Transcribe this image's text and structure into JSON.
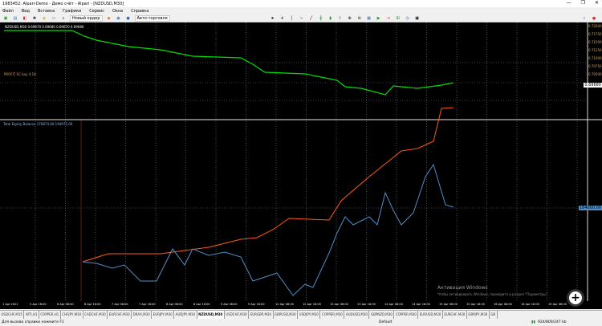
{
  "window": {
    "title": "1983452: Alpari-Demo - Демо счёт - Alpari - [NZDUSD,M30]",
    "minimize": "—",
    "restore": "❐",
    "close": "✕"
  },
  "menu": [
    "Файл",
    "Вид",
    "Вставка",
    "Графики",
    "Сервис",
    "Окна",
    "Справка"
  ],
  "toolbar": {
    "new_order": "Новый ордер",
    "autotrading": "Авто-торговля"
  },
  "chart": {
    "symbol_label": "NZDUSD,M30  0.69670 0.69680 0.69670 0.69680",
    "indicator_label": "PROFIT SC buy 4.18",
    "equity_label": "Total Equity Balance 176874.00 194972.00",
    "price_axis_top": [
      "0.72000",
      "0.71750",
      "0.71500",
      "0.71250",
      "0.71000",
      "0.70750",
      "0.70500"
    ],
    "current_price": "0.69680",
    "equity_marker": "184000.00",
    "time_labels": [
      "1 Apr 2021",
      "5 Apr 16:00",
      "6 Apr 08:00",
      "6 Apr 16:00",
      "7 Apr 08:00",
      "7 Apr 16:00",
      "8 Apr 08:00",
      "8 Apr 16:00",
      "9 Apr 08:00",
      "9 Apr 16:00",
      "12 Apr 08:00",
      "12 Apr 16:00",
      "13 Apr 08:00",
      "13 Apr 16:00",
      "14 Apr 08:00",
      "14 Apr 16:00",
      "15 Apr 08:00",
      "15 Apr 16:00",
      "16 Apr 08:00",
      "16 Apr 16:00",
      "19 Apr 08:00"
    ],
    "colors": {
      "price": "#00e000",
      "equity": "#ff5a14",
      "balance": "#4f8fc8",
      "grid": "#6f7a89"
    }
  },
  "tabs": [
    "USDCHF,M15",
    "WTI,H1",
    "COPPER,H1",
    "CHFJPY,M30",
    "CADCHF,M30",
    "EURCHF,M30",
    "DRAX,M30",
    "EURJPY,M30",
    "AUDJPY,M30",
    "NZDUSD,M30",
    "USDCHF,M30",
    "EURGBP,M30",
    "GBPUSD,M30",
    "USDJPY,M30",
    "COPPER,M30",
    "AUDUSD,M30",
    "GBPNZD,M30",
    "COPPER,M30",
    "EURUSD,M30",
    "EURCHF,M30",
    "GBPJPY,M30",
    "GB"
  ],
  "active_tab": "NZDUSD,M30",
  "status": {
    "help": "Для вызова справки нажмите F1",
    "profile": "Default",
    "traffic": "924/800/247 kb"
  },
  "watermark": {
    "title": "Активация Windows",
    "text": "Чтобы активировать Windows, перейдите в раздел \"Параметры\"."
  }
}
